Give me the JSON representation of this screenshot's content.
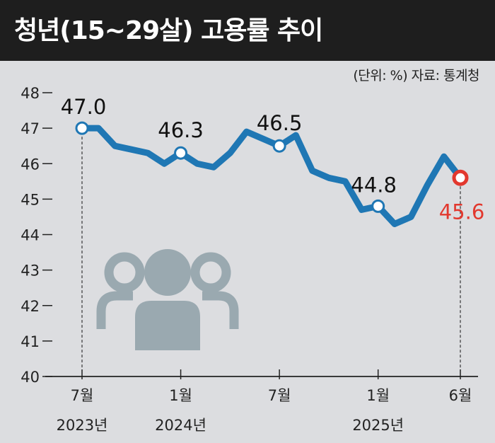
{
  "header": {
    "title": "청년(15~29살) 고용률 추이"
  },
  "source_note": "(단위: %) 자료: 통계청",
  "colors": {
    "line": "#1f77b4",
    "highlight": "#e2382e",
    "icon": "#9aa9b0",
    "background": "#dcdde0",
    "header": "#1e1e1e"
  },
  "icon": "people-group-icon",
  "chart_data": {
    "type": "line",
    "title": "청년(15~29살) 고용률 추이",
    "ylabel": "%",
    "ylim": [
      40,
      48
    ],
    "yticks": [
      "40",
      "41",
      "42",
      "43",
      "44",
      "45",
      "46",
      "47",
      "48"
    ],
    "grid": false,
    "x": [
      "2023-07",
      "2023-08",
      "2023-09",
      "2023-10",
      "2023-11",
      "2023-12",
      "2024-01",
      "2024-02",
      "2024-03",
      "2024-04",
      "2024-05",
      "2024-06",
      "2024-07",
      "2024-08",
      "2024-09",
      "2024-10",
      "2024-11",
      "2024-12",
      "2025-01",
      "2025-02",
      "2025-03",
      "2025-04",
      "2025-05",
      "2025-06"
    ],
    "values": [
      47.0,
      47.0,
      46.5,
      46.4,
      46.3,
      46.0,
      46.3,
      46.0,
      45.9,
      46.3,
      46.9,
      46.7,
      46.5,
      46.8,
      45.8,
      45.6,
      45.5,
      44.7,
      44.8,
      44.3,
      44.5,
      45.4,
      46.2,
      45.6
    ],
    "x_tick_labels": [
      {
        "x": "2023-07",
        "month": "7월",
        "year": "2023년"
      },
      {
        "x": "2024-01",
        "month": "1월",
        "year": "2024년"
      },
      {
        "x": "2024-07",
        "month": "7월",
        "year": ""
      },
      {
        "x": "2025-01",
        "month": "1월",
        "year": "2025년"
      },
      {
        "x": "2025-06",
        "month": "6월",
        "year": ""
      }
    ],
    "data_labels": [
      {
        "x": "2023-07",
        "text": "47.0"
      },
      {
        "x": "2024-01",
        "text": "46.3"
      },
      {
        "x": "2024-07",
        "text": "46.5"
      },
      {
        "x": "2025-01",
        "text": "44.8"
      },
      {
        "x": "2025-06",
        "text": "45.6",
        "highlight": true
      }
    ]
  }
}
